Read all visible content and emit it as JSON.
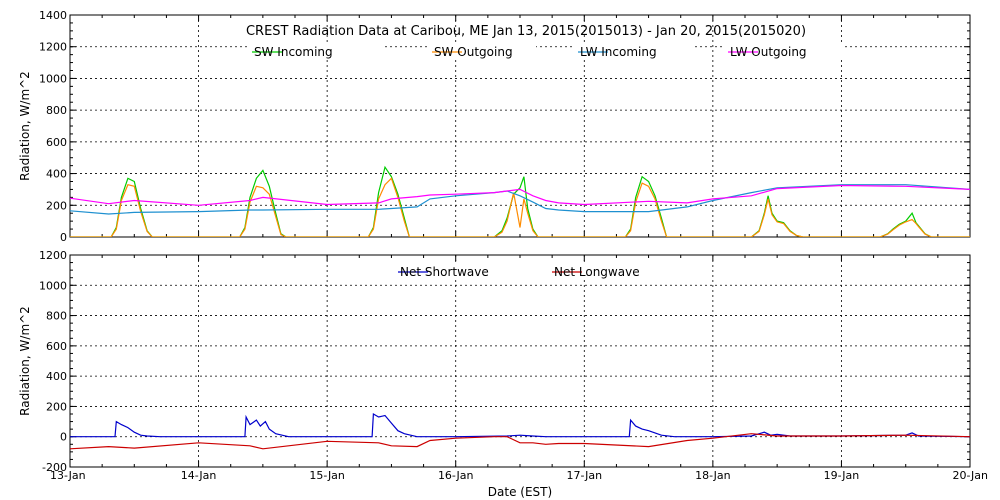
{
  "chart_data": [
    {
      "type": "line",
      "title": "CREST Radiation Data at Caribou, ME   Jan 13, 2015(2015013) - Jan 20, 2015(2015020)",
      "xlabel": "",
      "ylabel": "Radiation, W/m^2",
      "ylim": [
        0,
        1400
      ],
      "yticks": [
        "0",
        "200",
        "400",
        "600",
        "800",
        "1000",
        "1200",
        "1400"
      ],
      "xlim": [
        0,
        7
      ],
      "x_unit": "days since 13-Jan",
      "grid": true,
      "legend": "top",
      "series": [
        {
          "name": "SW Incoming",
          "color": "#00cc00",
          "x": [
            0.0,
            0.25,
            0.32,
            0.36,
            0.4,
            0.45,
            0.5,
            0.55,
            0.6,
            0.64,
            0.68,
            1.0,
            1.25,
            1.32,
            1.36,
            1.4,
            1.45,
            1.5,
            1.55,
            1.6,
            1.64,
            1.68,
            2.0,
            2.25,
            2.32,
            2.36,
            2.4,
            2.45,
            2.5,
            2.55,
            2.6,
            2.64,
            2.68,
            3.0,
            3.3,
            3.36,
            3.4,
            3.45,
            3.5,
            3.53,
            3.56,
            3.6,
            3.64,
            3.68,
            4.0,
            4.25,
            4.32,
            4.36,
            4.4,
            4.45,
            4.5,
            4.55,
            4.6,
            4.64,
            4.68,
            5.0,
            5.3,
            5.36,
            5.4,
            5.43,
            5.46,
            5.5,
            5.55,
            5.6,
            5.65,
            5.7,
            6.0,
            6.3,
            6.36,
            6.4,
            6.45,
            6.5,
            6.55,
            6.58,
            6.6,
            6.65,
            6.7,
            7.0
          ],
          "y": [
            0,
            0,
            0,
            60,
            250,
            370,
            350,
            180,
            40,
            0,
            0,
            0,
            0,
            0,
            60,
            250,
            370,
            420,
            320,
            150,
            20,
            0,
            0,
            0,
            0,
            60,
            280,
            440,
            380,
            270,
            120,
            0,
            0,
            0,
            0,
            40,
            120,
            270,
            310,
            380,
            180,
            50,
            0,
            0,
            0,
            0,
            0,
            50,
            250,
            380,
            350,
            260,
            120,
            0,
            0,
            0,
            0,
            40,
            150,
            260,
            150,
            100,
            90,
            40,
            10,
            0,
            0,
            0,
            20,
            50,
            80,
            100,
            150,
            90,
            70,
            20,
            0,
            0
          ]
        },
        {
          "name": "SW Outgoing",
          "color": "#ff8c00",
          "x": [
            0.0,
            0.25,
            0.32,
            0.36,
            0.4,
            0.45,
            0.5,
            0.55,
            0.6,
            0.64,
            0.68,
            1.0,
            1.25,
            1.32,
            1.36,
            1.4,
            1.45,
            1.5,
            1.55,
            1.6,
            1.64,
            1.68,
            2.0,
            2.25,
            2.32,
            2.36,
            2.4,
            2.45,
            2.5,
            2.55,
            2.6,
            2.64,
            2.68,
            3.0,
            3.3,
            3.36,
            3.4,
            3.45,
            3.5,
            3.53,
            3.56,
            3.6,
            3.64,
            3.68,
            4.0,
            4.25,
            4.32,
            4.36,
            4.4,
            4.45,
            4.5,
            4.55,
            4.6,
            4.64,
            4.68,
            5.0,
            5.3,
            5.36,
            5.4,
            5.43,
            5.46,
            5.5,
            5.55,
            5.6,
            5.65,
            5.7,
            6.0,
            6.3,
            6.36,
            6.4,
            6.45,
            6.5,
            6.55,
            6.58,
            6.6,
            6.65,
            6.7,
            7.0
          ],
          "y": [
            0,
            0,
            0,
            50,
            230,
            330,
            320,
            160,
            35,
            0,
            0,
            0,
            0,
            0,
            50,
            220,
            320,
            310,
            270,
            130,
            15,
            0,
            0,
            0,
            0,
            50,
            240,
            330,
            370,
            250,
            100,
            0,
            0,
            0,
            0,
            30,
            100,
            280,
            60,
            240,
            150,
            40,
            0,
            0,
            0,
            0,
            0,
            40,
            220,
            340,
            320,
            240,
            100,
            0,
            0,
            0,
            0,
            35,
            140,
            240,
            140,
            95,
            85,
            35,
            10,
            0,
            0,
            0,
            18,
            45,
            75,
            95,
            110,
            85,
            65,
            18,
            0,
            0
          ]
        },
        {
          "name": "LW Incoming",
          "color": "#1e90d0",
          "x": [
            0.0,
            0.3,
            0.5,
            1.0,
            1.4,
            1.5,
            2.0,
            2.4,
            2.5,
            2.7,
            2.8,
            3.0,
            3.3,
            3.4,
            3.5,
            3.6,
            3.7,
            3.8,
            4.0,
            4.5,
            4.8,
            5.0,
            5.3,
            5.5,
            6.0,
            6.5,
            7.0
          ],
          "y": [
            165,
            145,
            155,
            160,
            170,
            170,
            175,
            175,
            180,
            190,
            240,
            260,
            280,
            290,
            260,
            220,
            180,
            170,
            160,
            160,
            190,
            230,
            280,
            310,
            330,
            330,
            300
          ]
        },
        {
          "name": "LW Outgoing",
          "color": "#ff00ff",
          "x": [
            0.0,
            0.3,
            0.5,
            1.0,
            1.4,
            1.5,
            2.0,
            2.4,
            2.5,
            2.7,
            2.8,
            3.0,
            3.3,
            3.4,
            3.5,
            3.6,
            3.7,
            3.8,
            4.0,
            4.5,
            4.8,
            5.0,
            5.3,
            5.5,
            6.0,
            6.5,
            7.0
          ],
          "y": [
            245,
            210,
            230,
            200,
            230,
            250,
            205,
            215,
            240,
            255,
            265,
            270,
            280,
            290,
            300,
            260,
            230,
            215,
            205,
            225,
            215,
            240,
            260,
            305,
            325,
            320,
            300
          ]
        }
      ]
    },
    {
      "type": "line",
      "title": "",
      "xlabel": "Date (EST)",
      "ylabel": "Radiation, W/m^2",
      "ylim": [
        -200,
        1200
      ],
      "yticks": [
        "-200",
        "0",
        "200",
        "400",
        "600",
        "800",
        "1000",
        "1200"
      ],
      "xlim": [
        0,
        7
      ],
      "x_unit": "days since 13-Jan",
      "xticks": [
        "13-Jan",
        "14-Jan",
        "15-Jan",
        "16-Jan",
        "17-Jan",
        "18-Jan",
        "19-Jan",
        "20-Jan"
      ],
      "grid": true,
      "legend": "top",
      "series": [
        {
          "name": "Net Shortwave",
          "color": "#0000cc",
          "x": [
            0.0,
            0.35,
            0.36,
            0.4,
            0.45,
            0.5,
            0.55,
            0.6,
            0.7,
            1.0,
            1.36,
            1.37,
            1.4,
            1.45,
            1.48,
            1.52,
            1.55,
            1.6,
            1.7,
            2.0,
            2.35,
            2.36,
            2.4,
            2.45,
            2.5,
            2.55,
            2.6,
            2.7,
            3.0,
            3.4,
            3.5,
            3.6,
            3.7,
            4.0,
            4.35,
            4.36,
            4.4,
            4.45,
            4.5,
            4.55,
            4.6,
            4.7,
            5.0,
            5.3,
            5.4,
            5.45,
            5.5,
            5.6,
            6.0,
            6.5,
            6.55,
            6.6,
            7.0
          ],
          "y": [
            0,
            0,
            100,
            80,
            60,
            30,
            10,
            5,
            0,
            0,
            0,
            130,
            80,
            110,
            70,
            100,
            50,
            20,
            0,
            0,
            0,
            150,
            130,
            140,
            90,
            40,
            20,
            0,
            0,
            5,
            10,
            5,
            0,
            0,
            0,
            110,
            70,
            50,
            40,
            25,
            10,
            0,
            0,
            5,
            30,
            10,
            15,
            5,
            5,
            10,
            25,
            5,
            0
          ]
        },
        {
          "name": "Net Longwave",
          "color": "#cc0000",
          "x": [
            0.0,
            0.3,
            0.5,
            1.0,
            1.4,
            1.5,
            2.0,
            2.4,
            2.5,
            2.7,
            2.8,
            3.0,
            3.3,
            3.4,
            3.5,
            3.6,
            3.7,
            3.8,
            4.0,
            4.5,
            4.8,
            5.0,
            5.3,
            5.5,
            6.0,
            6.5,
            7.0
          ],
          "y": [
            -80,
            -65,
            -75,
            -40,
            -60,
            -80,
            -30,
            -40,
            -60,
            -65,
            -25,
            -10,
            0,
            0,
            -40,
            -40,
            -50,
            -45,
            -45,
            -65,
            -25,
            -10,
            20,
            5,
            5,
            10,
            0
          ]
        }
      ]
    }
  ]
}
